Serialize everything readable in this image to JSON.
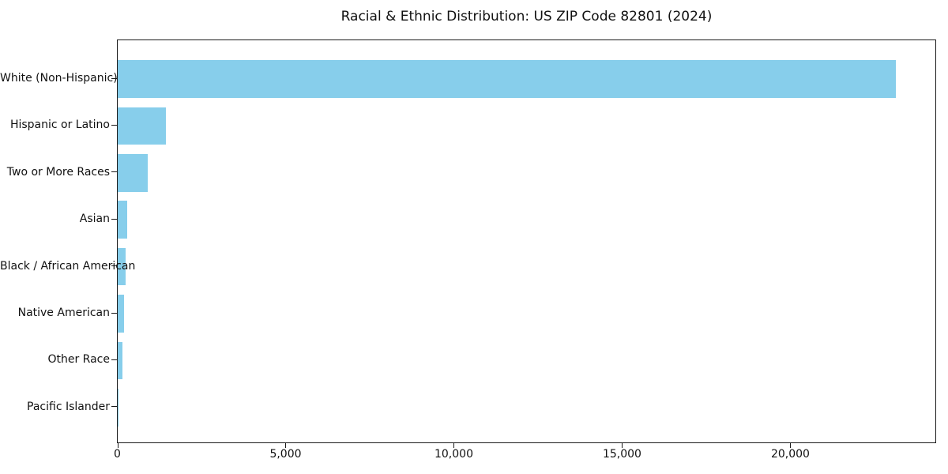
{
  "chart_data": {
    "type": "bar",
    "orientation": "horizontal",
    "title": "Racial & Ethnic Distribution: US ZIP Code 82801 (2024)",
    "categories": [
      "White (Non-Hispanic)",
      "Hispanic or Latino",
      "Two or More Races",
      "Asian",
      "Black / African American",
      "Native American",
      "Other Race",
      "Pacific Islander"
    ],
    "values": [
      23150,
      1440,
      890,
      290,
      235,
      190,
      140,
      10
    ],
    "xlabel": "",
    "ylabel": "",
    "xlim": [
      0,
      24320
    ],
    "xticks": [
      {
        "value": 0,
        "label": "0"
      },
      {
        "value": 5000,
        "label": "5,000"
      },
      {
        "value": 10000,
        "label": "10,000"
      },
      {
        "value": 15000,
        "label": "15,000"
      },
      {
        "value": 20000,
        "label": "20,000"
      }
    ],
    "bar_color": "#87CEEB",
    "grid": false,
    "legend_position": "none"
  }
}
